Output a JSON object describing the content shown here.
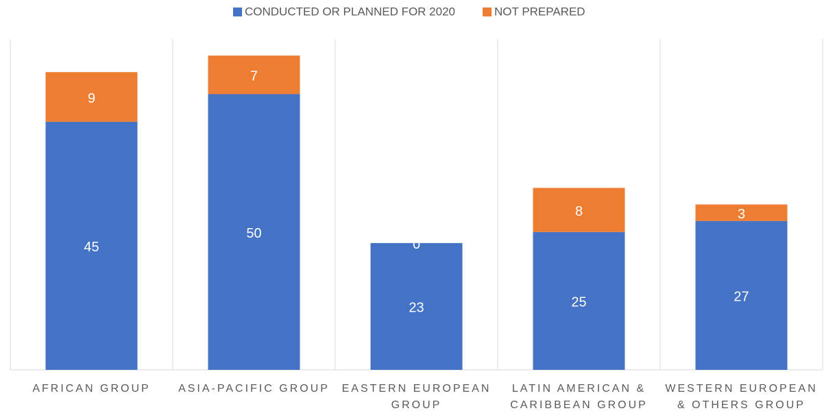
{
  "chart_data": {
    "type": "stacked_bar",
    "categories": [
      "AFRICAN GROUP",
      "ASIA-PACIFIC GROUP",
      "EASTERN EUROPEAN GROUP",
      "LATIN AMERICAN & CARIBBEAN GROUP",
      "WESTERN EUROPEAN & OTHERS GROUP"
    ],
    "series": [
      {
        "name": "CONDUCTED OR PLANNED FOR 2020",
        "color": "#4472c4",
        "values": [
          45,
          50,
          23,
          25,
          27
        ]
      },
      {
        "name": "NOT PREPARED",
        "color": "#ed7d31",
        "values": [
          9,
          7,
          0,
          8,
          3
        ]
      }
    ],
    "ylim": [
      0,
      60
    ],
    "legend": "top"
  }
}
